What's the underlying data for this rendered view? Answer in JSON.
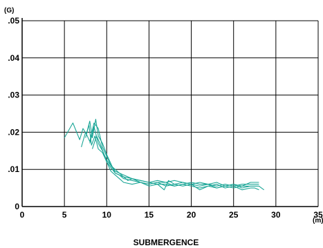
{
  "chart_data": {
    "type": "line",
    "xlabel": "SUBMERGENCE",
    "x_unit": "(m)",
    "y_unit": "(G)",
    "xlim": [
      0,
      35
    ],
    "ylim": [
      0,
      0.05
    ],
    "x_ticks": [
      0,
      5,
      10,
      15,
      20,
      25,
      30,
      35
    ],
    "y_ticks": [
      {
        "value": 0,
        "label": "0"
      },
      {
        "value": 0.01,
        "label": ".01"
      },
      {
        "value": 0.02,
        "label": ".02"
      },
      {
        "value": 0.03,
        "label": ".03"
      },
      {
        "value": 0.04,
        "label": ".04"
      },
      {
        "value": 0.05,
        "label": ".05"
      }
    ],
    "grid": true,
    "line_color": "#1aa596",
    "series": [
      {
        "points": [
          [
            5,
            0.0185
          ],
          [
            6,
            0.0225
          ],
          [
            6.8,
            0.018
          ],
          [
            7.2,
            0.021
          ],
          [
            7.6,
            0.0195
          ],
          [
            8,
            0.023
          ],
          [
            8.3,
            0.0185
          ],
          [
            8.7,
            0.0235
          ],
          [
            9,
            0.019
          ],
          [
            9.5,
            0.017
          ],
          [
            10,
            0.014
          ],
          [
            10.5,
            0.0115
          ],
          [
            11,
            0.009
          ],
          [
            11.5,
            0.0085
          ],
          [
            12,
            0.0075
          ],
          [
            13,
            0.007
          ],
          [
            14,
            0.0065
          ],
          [
            15,
            0.006
          ],
          [
            16,
            0.0065
          ],
          [
            17,
            0.0055
          ],
          [
            18,
            0.006
          ],
          [
            19,
            0.0065
          ],
          [
            20,
            0.006
          ],
          [
            21,
            0.0055
          ],
          [
            22,
            0.006
          ],
          [
            23,
            0.005
          ],
          [
            24,
            0.0055
          ],
          [
            25,
            0.006
          ],
          [
            26,
            0.005
          ],
          [
            27,
            0.0055
          ],
          [
            28,
            0.0055
          ]
        ]
      },
      {
        "points": [
          [
            7,
            0.016
          ],
          [
            7.5,
            0.02
          ],
          [
            8,
            0.0175
          ],
          [
            8.5,
            0.0225
          ],
          [
            9,
            0.021
          ],
          [
            9.5,
            0.016
          ],
          [
            10,
            0.0135
          ],
          [
            10.5,
            0.011
          ],
          [
            11,
            0.01
          ],
          [
            11.5,
            0.009
          ],
          [
            12,
            0.008
          ],
          [
            13,
            0.0075
          ],
          [
            14,
            0.007
          ],
          [
            15,
            0.0065
          ],
          [
            16,
            0.007
          ],
          [
            17,
            0.0065
          ],
          [
            18,
            0.0055
          ],
          [
            19,
            0.006
          ],
          [
            20,
            0.0065
          ],
          [
            21,
            0.006
          ],
          [
            22,
            0.006
          ],
          [
            23,
            0.0055
          ],
          [
            24,
            0.006
          ],
          [
            25,
            0.0055
          ],
          [
            26,
            0.006
          ],
          [
            27,
            0.006
          ],
          [
            28,
            0.006
          ]
        ]
      },
      {
        "points": [
          [
            7.5,
            0.0185
          ],
          [
            7.9,
            0.022
          ],
          [
            8.2,
            0.0165
          ],
          [
            8.6,
            0.019
          ],
          [
            9,
            0.0155
          ],
          [
            9.5,
            0.0145
          ],
          [
            10,
            0.012
          ],
          [
            10.5,
            0.0105
          ],
          [
            11,
            0.009
          ],
          [
            12,
            0.008
          ],
          [
            12.5,
            0.007
          ],
          [
            13,
            0.0075
          ],
          [
            14,
            0.0065
          ],
          [
            15,
            0.006
          ],
          [
            16,
            0.0065
          ],
          [
            17,
            0.0065
          ],
          [
            18,
            0.007
          ],
          [
            19,
            0.0065
          ],
          [
            20,
            0.006
          ],
          [
            21,
            0.0065
          ],
          [
            22,
            0.006
          ],
          [
            23,
            0.0065
          ],
          [
            24,
            0.0055
          ],
          [
            25,
            0.006
          ],
          [
            26,
            0.0055
          ],
          [
            27,
            0.0065
          ],
          [
            28,
            0.0065
          ]
        ]
      },
      {
        "points": [
          [
            8.3,
            0.0155
          ],
          [
            8.8,
            0.019
          ],
          [
            9.2,
            0.017
          ],
          [
            9.6,
            0.0145
          ],
          [
            10,
            0.012
          ],
          [
            10.5,
            0.0095
          ],
          [
            11,
            0.0085
          ],
          [
            11.5,
            0.0075
          ],
          [
            12,
            0.0065
          ],
          [
            13,
            0.006
          ],
          [
            14,
            0.0065
          ],
          [
            15,
            0.0055
          ],
          [
            16,
            0.006
          ],
          [
            16.8,
            0.0045
          ],
          [
            17.3,
            0.007
          ],
          [
            18,
            0.006
          ],
          [
            19,
            0.0055
          ],
          [
            20,
            0.006
          ],
          [
            21,
            0.0045
          ],
          [
            22,
            0.0055
          ],
          [
            23,
            0.006
          ],
          [
            24,
            0.005
          ],
          [
            25,
            0.0055
          ],
          [
            26,
            0.0045
          ],
          [
            27,
            0.005
          ],
          [
            27.5,
            0.005
          ],
          [
            28,
            0.0045
          ]
        ]
      },
      {
        "points": [
          [
            8,
            0.017
          ],
          [
            8.5,
            0.0215
          ],
          [
            9,
            0.017
          ],
          [
            9.5,
            0.015
          ],
          [
            10,
            0.0125
          ],
          [
            10.5,
            0.011
          ],
          [
            11,
            0.0095
          ],
          [
            12,
            0.0085
          ],
          [
            13,
            0.0075
          ],
          [
            14,
            0.007
          ],
          [
            15,
            0.0065
          ],
          [
            16,
            0.006
          ],
          [
            17,
            0.006
          ],
          [
            18,
            0.0055
          ],
          [
            19,
            0.006
          ],
          [
            20,
            0.0055
          ],
          [
            21,
            0.005
          ],
          [
            22,
            0.0055
          ],
          [
            23,
            0.005
          ],
          [
            24,
            0.0055
          ],
          [
            25,
            0.005
          ],
          [
            26,
            0.0055
          ],
          [
            27,
            0.0055
          ],
          [
            28,
            0.0055
          ],
          [
            28.6,
            0.0045
          ]
        ]
      }
    ]
  }
}
